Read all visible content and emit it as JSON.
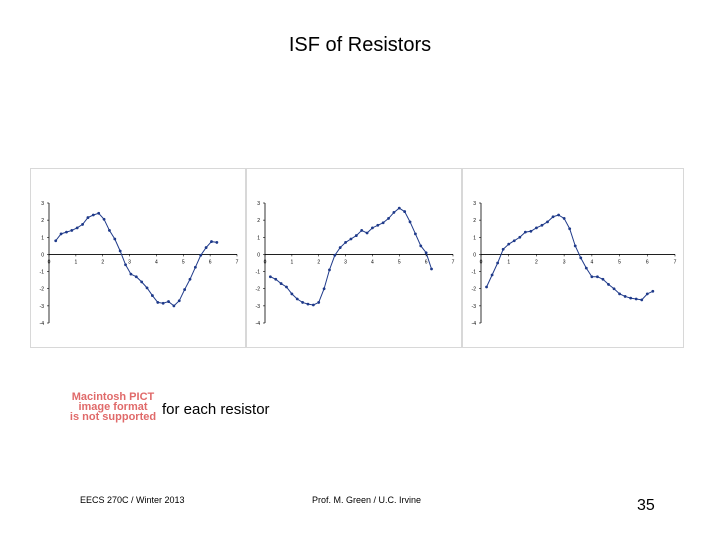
{
  "slide": {
    "title": "ISF of Resistors",
    "pict_note": "Macintosh PICT\nimage format\nis not supported",
    "caption": "for each resistor",
    "footer_left": "EECS 270C / Winter 2013",
    "footer_mid": "Prof. M. Green / U.C. Irvine",
    "page_number": "35"
  },
  "colors": {
    "series": "#1f3a8a",
    "axis": "#000000",
    "pict_text": "#e06a6a",
    "panel_border": "#d8d8d8"
  },
  "chart_data": [
    {
      "type": "scatter",
      "title": "",
      "xlim": [
        0,
        7
      ],
      "ylim": [
        -4,
        3
      ],
      "xticks": [
        "0",
        "1",
        "2",
        "3",
        "4",
        "5",
        "6",
        "7"
      ],
      "yticks": [
        "3",
        "2",
        "1",
        "0",
        "-1",
        "-2",
        "-3",
        "-4"
      ],
      "grid": false,
      "series": [
        {
          "x": [
            0.25,
            0.45,
            0.65,
            0.85,
            1.05,
            1.25,
            1.45,
            1.65,
            1.85,
            2.05,
            2.25,
            2.45,
            2.65,
            2.85,
            3.05,
            3.25,
            3.45,
            3.65,
            3.85,
            4.05,
            4.25,
            4.45,
            4.65,
            4.85,
            5.05,
            5.25,
            5.45,
            5.65,
            5.85,
            6.05,
            6.25
          ],
          "y": [
            0.8,
            1.2,
            1.3,
            1.4,
            1.55,
            1.75,
            2.15,
            2.3,
            2.4,
            2.05,
            1.4,
            0.9,
            0.2,
            -0.6,
            -1.15,
            -1.3,
            -1.6,
            -1.95,
            -2.4,
            -2.8,
            -2.85,
            -2.75,
            -3.0,
            -2.7,
            -2.05,
            -1.45,
            -0.75,
            -0.05,
            0.4,
            0.75,
            0.7
          ]
        }
      ]
    },
    {
      "type": "scatter",
      "title": "",
      "xlim": [
        0,
        7
      ],
      "ylim": [
        -4,
        3
      ],
      "xticks": [
        "0",
        "1",
        "2",
        "3",
        "4",
        "5",
        "6",
        "7"
      ],
      "yticks": [
        "3",
        "2",
        "1",
        "0",
        "-1",
        "-2",
        "-3",
        "-4"
      ],
      "grid": false,
      "series": [
        {
          "x": [
            0.2,
            0.4,
            0.6,
            0.8,
            1.0,
            1.2,
            1.4,
            1.6,
            1.8,
            2.0,
            2.2,
            2.4,
            2.6,
            2.8,
            3.0,
            3.2,
            3.4,
            3.6,
            3.8,
            4.0,
            4.2,
            4.4,
            4.6,
            4.8,
            5.0,
            5.2,
            5.4,
            5.6,
            5.8,
            6.0,
            6.2
          ],
          "y": [
            -1.3,
            -1.45,
            -1.7,
            -1.9,
            -2.3,
            -2.6,
            -2.8,
            -2.9,
            -2.95,
            -2.8,
            -2.0,
            -0.9,
            -0.05,
            0.4,
            0.7,
            0.9,
            1.1,
            1.4,
            1.25,
            1.55,
            1.7,
            1.85,
            2.1,
            2.45,
            2.7,
            2.5,
            1.9,
            1.2,
            0.5,
            0.1,
            -0.85
          ]
        }
      ]
    },
    {
      "type": "scatter",
      "title": "",
      "xlim": [
        0,
        7
      ],
      "ylim": [
        -4,
        3
      ],
      "xticks": [
        "0",
        "1",
        "2",
        "3",
        "4",
        "5",
        "6",
        "7"
      ],
      "yticks": [
        "3",
        "2",
        "1",
        "0",
        "-1",
        "-2",
        "-3",
        "-4"
      ],
      "grid": false,
      "series": [
        {
          "x": [
            0.2,
            0.4,
            0.6,
            0.8,
            1.0,
            1.2,
            1.4,
            1.6,
            1.8,
            2.0,
            2.2,
            2.4,
            2.6,
            2.8,
            3.0,
            3.2,
            3.4,
            3.6,
            3.8,
            4.0,
            4.2,
            4.4,
            4.6,
            4.8,
            5.0,
            5.2,
            5.4,
            5.6,
            5.8,
            6.0,
            6.2
          ],
          "y": [
            -1.9,
            -1.2,
            -0.5,
            0.3,
            0.6,
            0.8,
            1.0,
            1.3,
            1.35,
            1.55,
            1.7,
            1.9,
            2.2,
            2.3,
            2.1,
            1.5,
            0.5,
            -0.2,
            -0.8,
            -1.3,
            -1.3,
            -1.45,
            -1.75,
            -2.0,
            -2.3,
            -2.45,
            -2.55,
            -2.6,
            -2.65,
            -2.3,
            -2.15
          ]
        }
      ]
    }
  ]
}
